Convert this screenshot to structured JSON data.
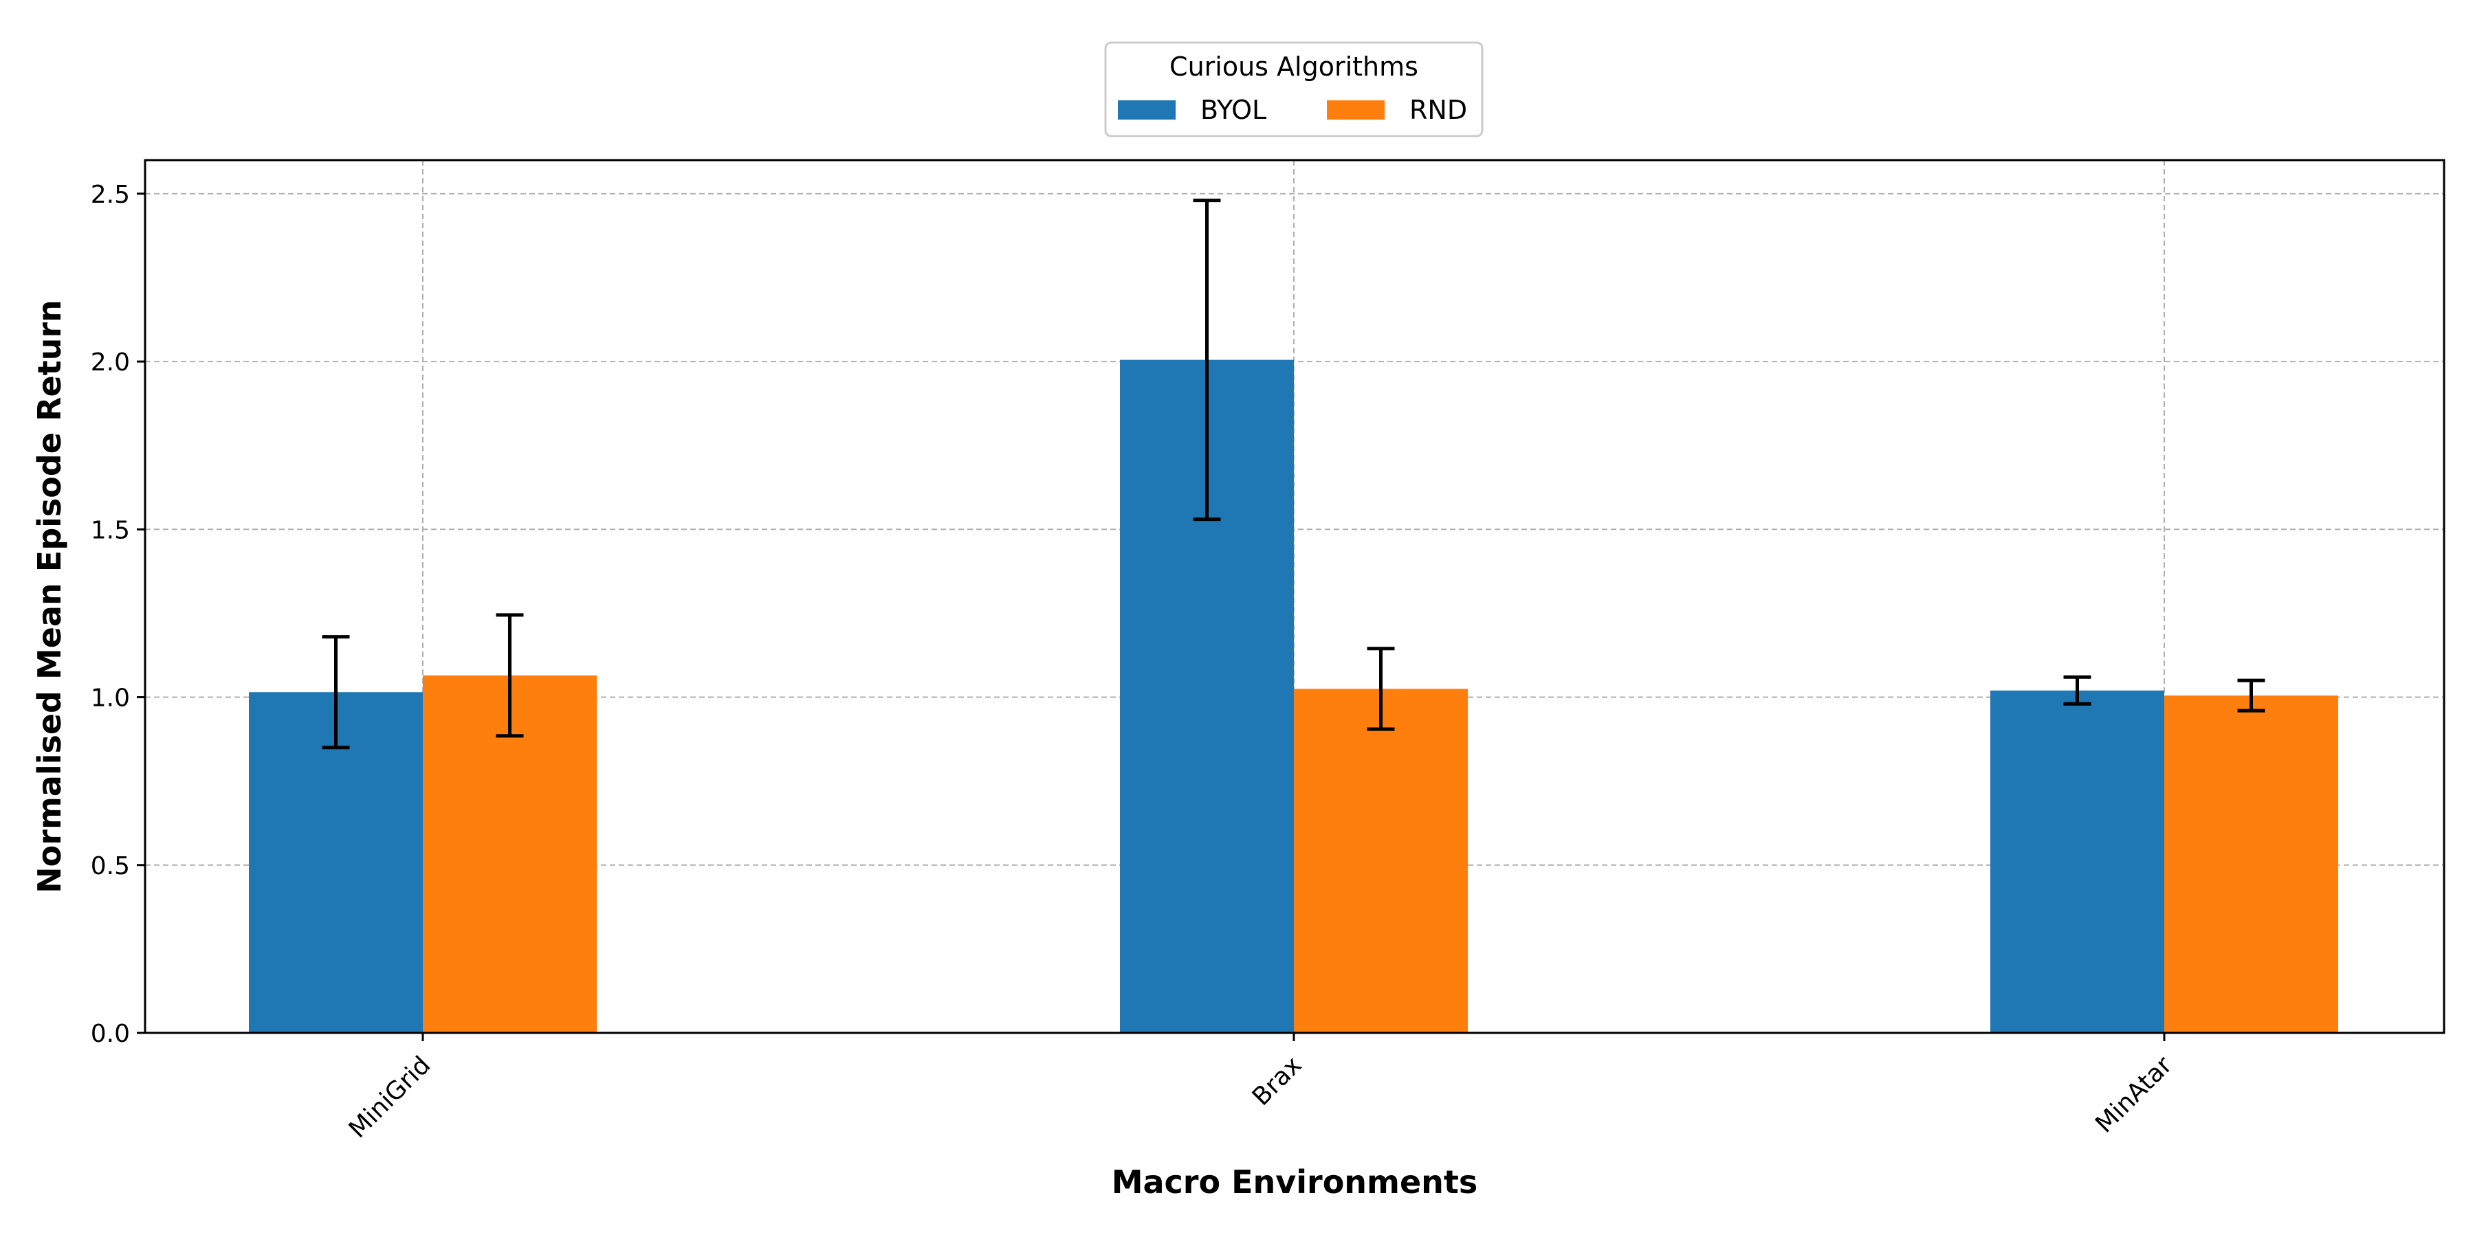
{
  "chart_data": {
    "type": "bar",
    "categories": [
      "MiniGrid",
      "Brax",
      "MinAtar"
    ],
    "series": [
      {
        "name": "BYOL",
        "color": "#1f77b4",
        "values": [
          1.015,
          2.005,
          1.02
        ],
        "error": [
          0.165,
          0.475,
          0.04
        ]
      },
      {
        "name": "RND",
        "color": "#ff7f0e",
        "values": [
          1.065,
          1.025,
          1.005
        ],
        "error": [
          0.18,
          0.12,
          0.045
        ]
      }
    ],
    "xlabel": "Macro Environments",
    "ylabel": "Normalised Mean Episode Return",
    "ylim": [
      0,
      2.6
    ],
    "yticks": [
      "0.0",
      "0.5",
      "1.0",
      "1.5",
      "2.0",
      "2.5"
    ],
    "grid": true,
    "legend": {
      "title": "Curious Algorithms",
      "placement": "top-center"
    }
  }
}
